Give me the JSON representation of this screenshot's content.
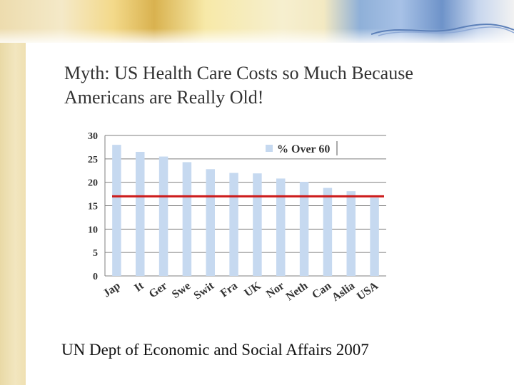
{
  "slide": {
    "title_line1": "Myth: US Health Care Costs so Much Because",
    "title_line2": "Americans are Really Old!",
    "caption": "UN Dept of Economic and Social Affairs 2007"
  },
  "colors": {
    "bar": "#c6d9f0",
    "reference_line": "#cc1a1a",
    "grid": "#7f7f7f"
  },
  "chart_data": {
    "type": "bar",
    "categories": [
      "Jap",
      "It",
      "Ger",
      "Swe",
      "Swit",
      "Fra",
      "UK",
      "Nor",
      "Neth",
      "Can",
      "Aslia",
      "USA"
    ],
    "series": [
      {
        "name": "% Over 60",
        "values": [
          28,
          26.5,
          25.5,
          24.3,
          22.8,
          22,
          21.9,
          20.8,
          20.1,
          18.8,
          18.1,
          16.7
        ]
      }
    ],
    "reference_line": 17,
    "ylim": [
      0,
      30
    ],
    "yticks": [
      0,
      5,
      10,
      15,
      20,
      25,
      30
    ],
    "grid": true,
    "legend": "top-right"
  }
}
